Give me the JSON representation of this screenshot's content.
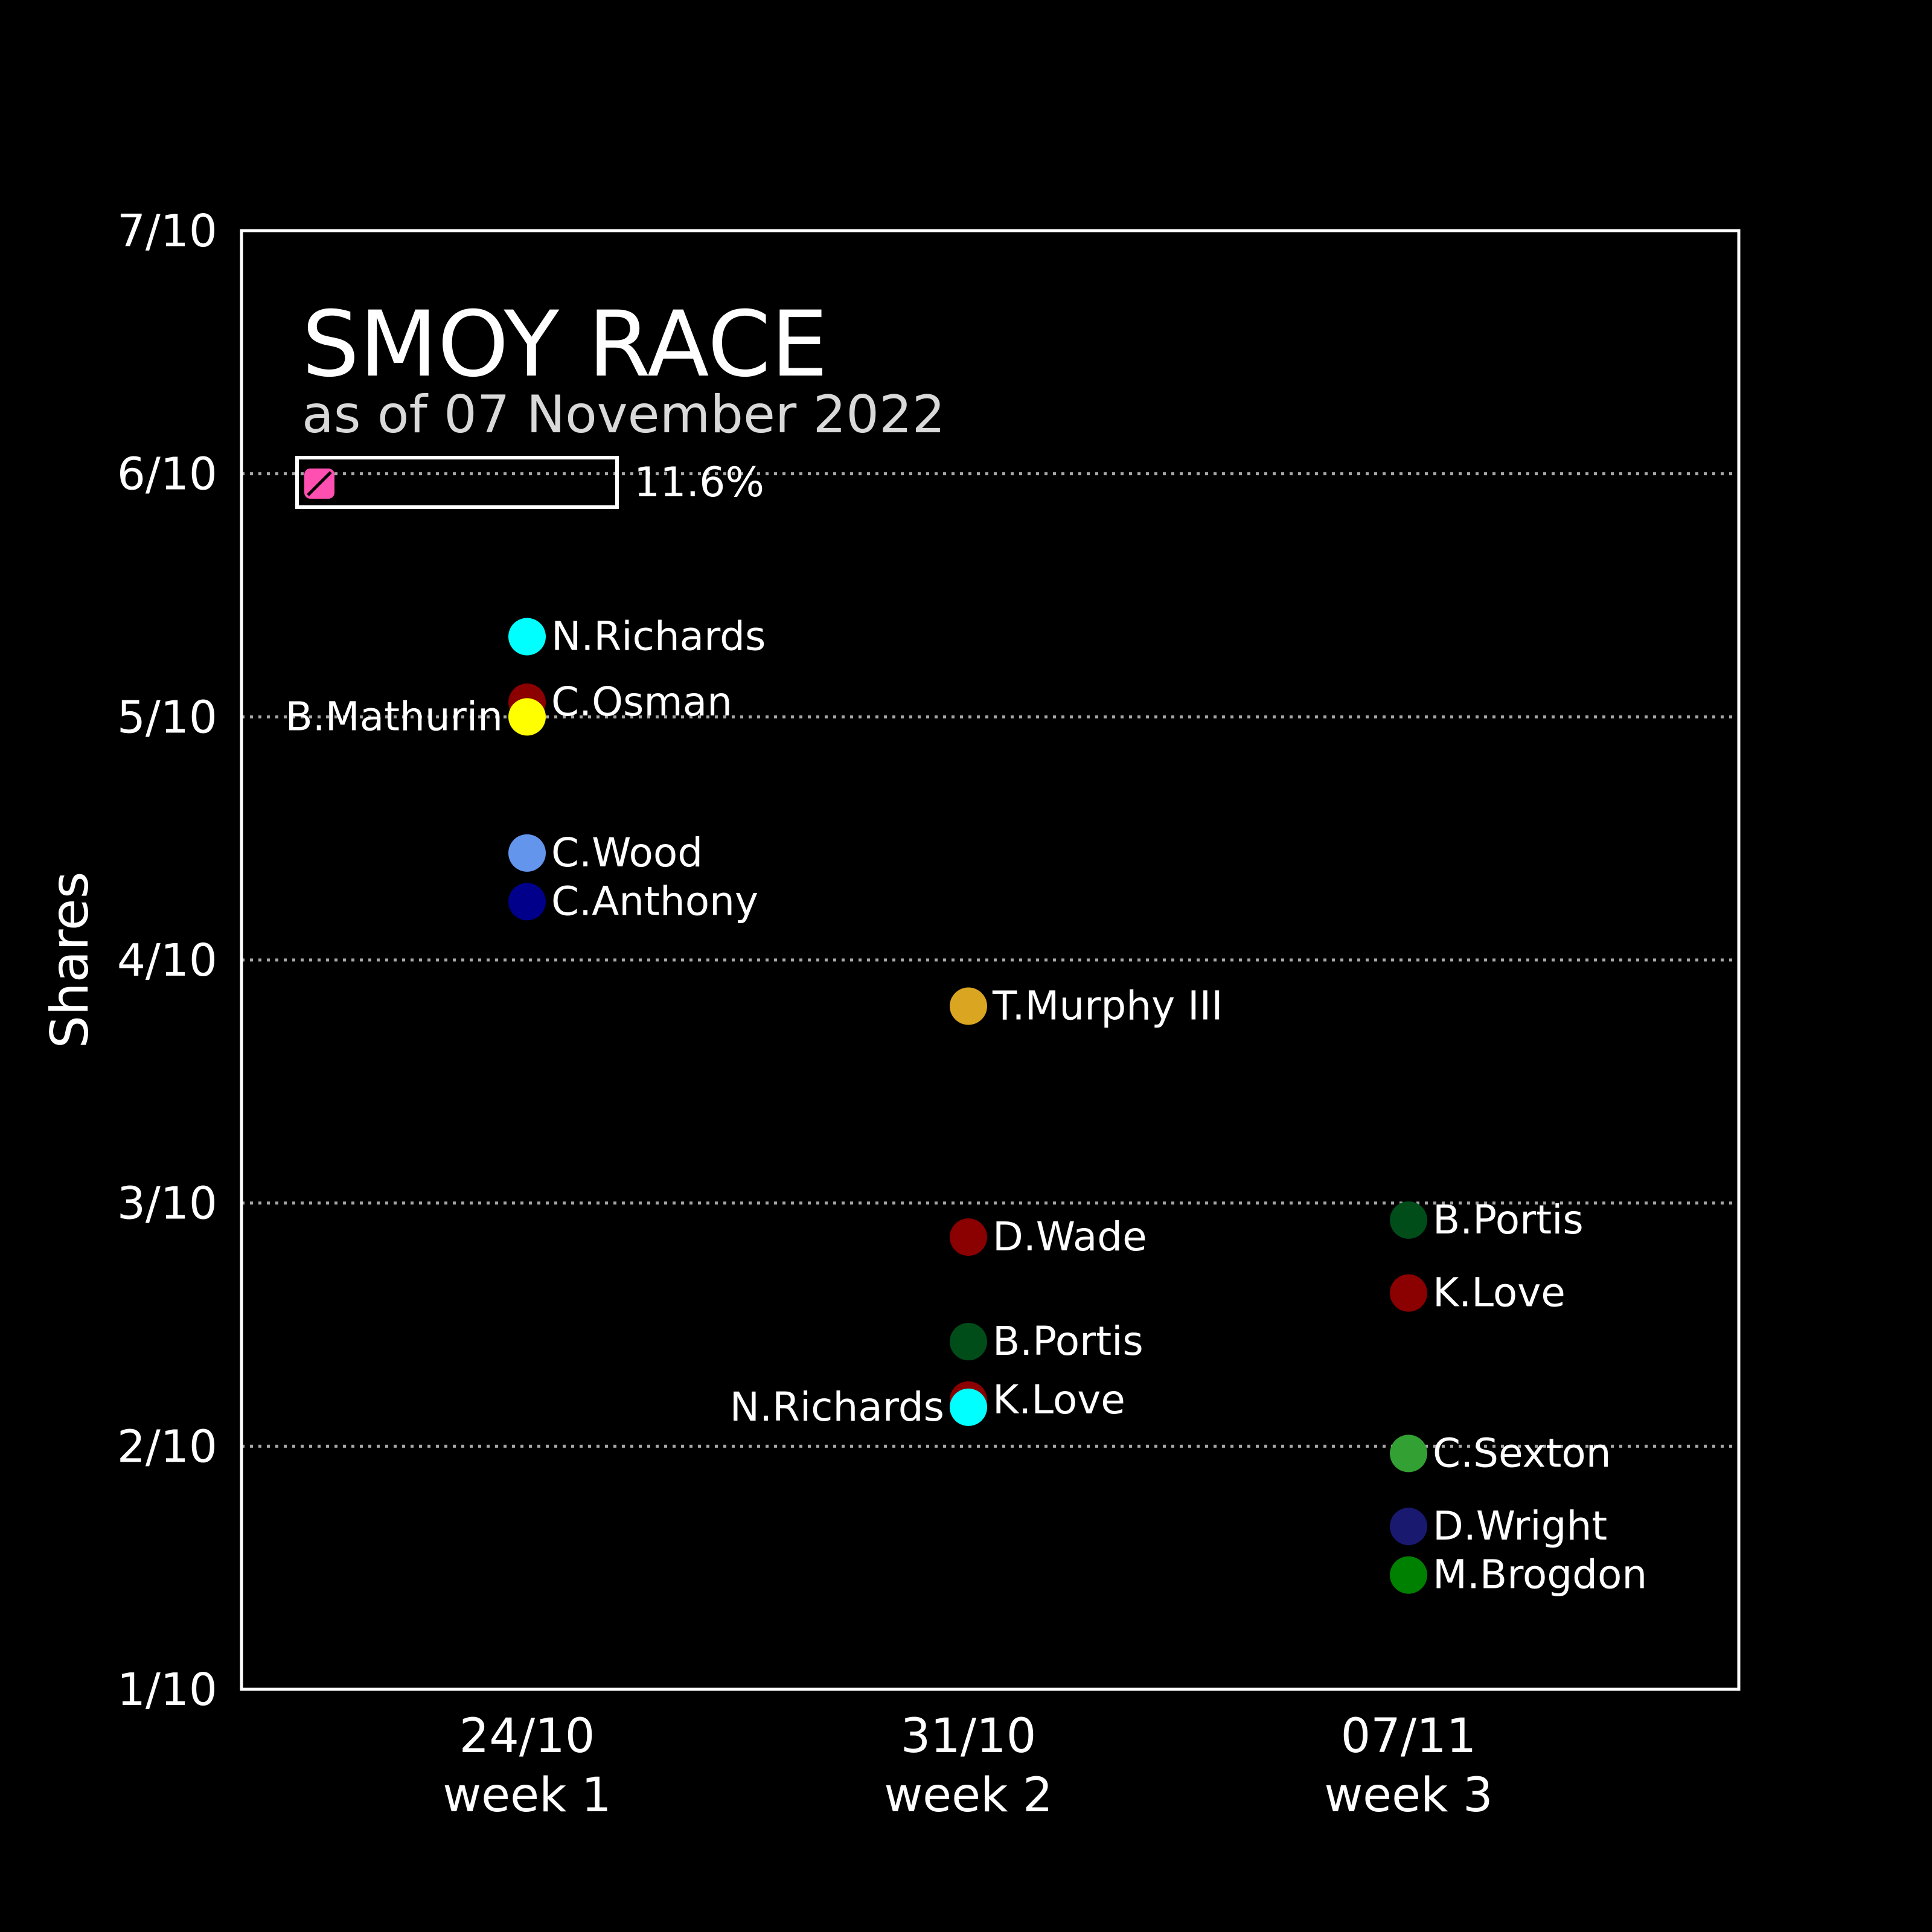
{
  "chart_data": {
    "type": "scatter",
    "title": "SMOY RACE",
    "subtitle": "as of 07 November 2022",
    "ylabel": "Shares",
    "ylim": [
      0.1,
      0.7
    ],
    "yticks": [
      {
        "value": 0.1,
        "label": "1/10"
      },
      {
        "value": 0.2,
        "label": "2/10"
      },
      {
        "value": 0.3,
        "label": "3/10"
      },
      {
        "value": 0.4,
        "label": "4/10"
      },
      {
        "value": 0.5,
        "label": "5/10"
      },
      {
        "value": 0.6,
        "label": "6/10"
      },
      {
        "value": 0.7,
        "label": "7/10"
      }
    ],
    "grid": "dotted horizontal",
    "categories": [
      {
        "date": "24/10",
        "week": "week 1"
      },
      {
        "date": "31/10",
        "week": "week 2"
      },
      {
        "date": "07/11",
        "week": "week 3"
      }
    ],
    "progress": {
      "value": 0.116,
      "label": "11.6%"
    },
    "points": [
      {
        "week": 0,
        "name": "N.Richards",
        "value": 0.533,
        "color": "#00ffff",
        "label_side": "right"
      },
      {
        "week": 0,
        "name": "C.Osman",
        "value": 0.506,
        "color": "#8b0000",
        "label_side": "right"
      },
      {
        "week": 0,
        "name": "B.Mathurin",
        "value": 0.5,
        "color": "#ffff00",
        "label_side": "left"
      },
      {
        "week": 0,
        "name": "C.Wood",
        "value": 0.444,
        "color": "#6495ed",
        "label_side": "right"
      },
      {
        "week": 0,
        "name": "C.Anthony",
        "value": 0.424,
        "color": "#00008b",
        "label_side": "right"
      },
      {
        "week": 1,
        "name": "T.Murphy III",
        "value": 0.381,
        "color": "#daa520",
        "label_side": "right"
      },
      {
        "week": 1,
        "name": "D.Wade",
        "value": 0.286,
        "color": "#8b0000",
        "label_side": "right"
      },
      {
        "week": 1,
        "name": "B.Portis",
        "value": 0.243,
        "color": "#004d1a",
        "label_side": "right"
      },
      {
        "week": 1,
        "name": "K.Love",
        "value": 0.219,
        "color": "#8b0000",
        "label_side": "right"
      },
      {
        "week": 1,
        "name": "N.Richards",
        "value": 0.216,
        "color": "#00ffff",
        "label_side": "left"
      },
      {
        "week": 2,
        "name": "B.Portis",
        "value": 0.293,
        "color": "#004d1a",
        "label_side": "right"
      },
      {
        "week": 2,
        "name": "K.Love",
        "value": 0.263,
        "color": "#8b0000",
        "label_side": "right"
      },
      {
        "week": 2,
        "name": "C.Sexton",
        "value": 0.197,
        "color": "#32a032",
        "label_side": "right"
      },
      {
        "week": 2,
        "name": "D.Wright",
        "value": 0.167,
        "color": "#191970",
        "label_side": "right"
      },
      {
        "week": 2,
        "name": "M.Brogdon",
        "value": 0.147,
        "color": "#008000",
        "label_side": "right"
      }
    ]
  },
  "colors": {
    "background": "#000000",
    "foreground": "#ffffff",
    "subtitle": "#d9d9d9",
    "progress_fill": "#ff4fb0",
    "grid": "#a6a6a6"
  }
}
